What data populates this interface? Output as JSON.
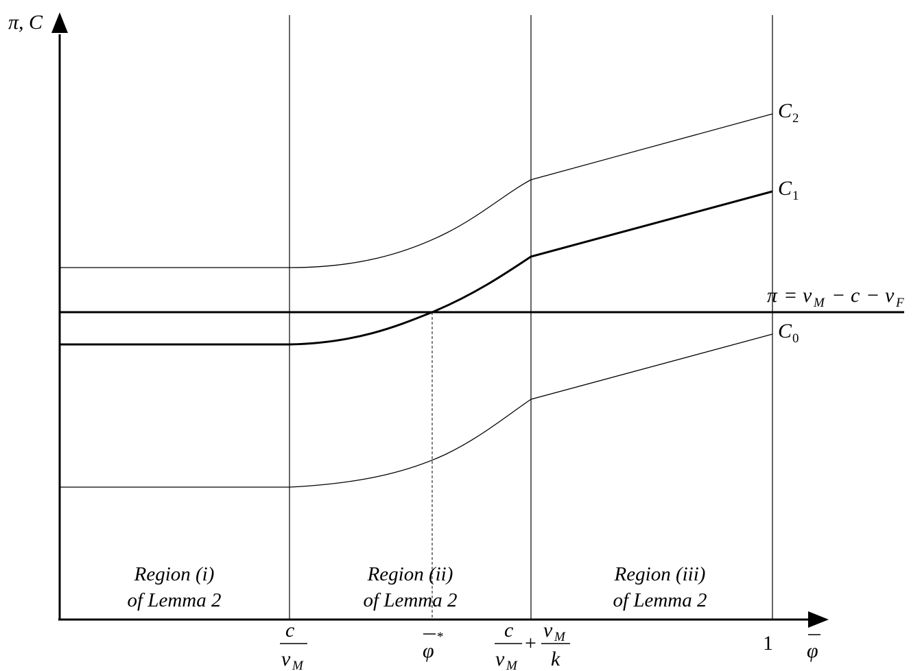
{
  "y_axis_label": "π, C",
  "x_axis_label": "φ",
  "x_axis_label_star": "*",
  "ticks": {
    "t1": {
      "num": "c",
      "den_base": "v",
      "den_sub": "M"
    },
    "phi_star": {
      "base": "φ",
      "sup": "*"
    },
    "t2": {
      "num1": "c",
      "den1_base": "v",
      "den1_sub": "M",
      "plus": "+",
      "num2_base": "v",
      "num2_sub": "M",
      "den2": "k"
    },
    "one": "1"
  },
  "curves": {
    "c2": {
      "base": "C",
      "sub": "2"
    },
    "c1": {
      "base": "C",
      "sub": "1"
    },
    "c0": {
      "base": "C",
      "sub": "0"
    }
  },
  "pi_line": {
    "pi": "π",
    "eq": "=",
    "v1": "v",
    "v1_sub": "M",
    "minus1": "−",
    "c": "c",
    "minus2": "−",
    "v2": "v",
    "v2_sub": "F"
  },
  "regions": [
    {
      "line1": "Region  (i)",
      "line2": "of Lemma 2"
    },
    {
      "line1": "Region   (ii)",
      "line2": "of Lemma 2"
    },
    {
      "line1": "Region   (iii)",
      "line2": "of Lemma 2"
    }
  ]
}
